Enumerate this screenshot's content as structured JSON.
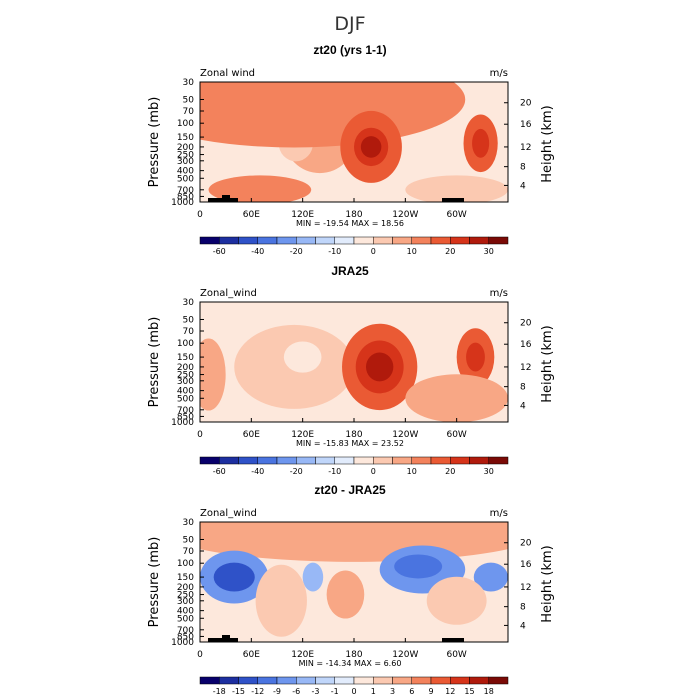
{
  "figure_title": "DJF",
  "chart_data": [
    {
      "type": "heatmap",
      "title": "zt20 (yrs 1-1)",
      "field_label": "Zonal wind",
      "units": "m/s",
      "ylabel": "Pressure (mb)",
      "ylabel_right": "Height (km)",
      "pressure_ticks": [
        "30",
        "50",
        "70",
        "100",
        "150",
        "200",
        "250",
        "300",
        "400",
        "500",
        "700",
        "850",
        "1000"
      ],
      "height_ticks": [
        "4",
        "8",
        "12",
        "16",
        "20"
      ],
      "lon_ticks": [
        "0",
        "60E",
        "120E",
        "180",
        "120W",
        "60W"
      ],
      "min_max": "MIN = -19.54   MAX =  18.56",
      "colorbar_labels": [
        "-60",
        "-40",
        "-20",
        "-10",
        "0",
        "10",
        "20",
        "30"
      ],
      "colorbar_colors": [
        "#08006b",
        "#1d2fa0",
        "#2f52c8",
        "#4a74e0",
        "#6e96ee",
        "#98b8f6",
        "#c0d6fa",
        "#e2ecfc",
        "#fde8dc",
        "#fbc9b1",
        "#f8a785",
        "#f3825c",
        "#ea5a34",
        "#d6341a",
        "#b01a0c",
        "#7a0a06"
      ],
      "blobs": [
        {
          "lon": 140,
          "p": 150,
          "rx": 42,
          "ry": 0.3,
          "val": 0
        },
        {
          "lon": 50,
          "p": 150,
          "rx": 40,
          "ry": 0.25,
          "val": -11
        },
        {
          "lon": 50,
          "p": 150,
          "rx": 22,
          "ry": 0.14,
          "val": -16
        },
        {
          "lon": 112,
          "p": 180,
          "rx": 20,
          "ry": 0.15,
          "val": -7
        },
        {
          "lon": 110,
          "p": 50,
          "rx": 200,
          "ry": 0.4,
          "val": 7
        },
        {
          "lon": 200,
          "p": 200,
          "rx": 36,
          "ry": 0.3,
          "val": 15
        },
        {
          "lon": 200,
          "p": 200,
          "rx": 20,
          "ry": 0.16,
          "val": 21
        },
        {
          "lon": 200,
          "p": 200,
          "rx": 12,
          "ry": 0.09,
          "val": 26
        },
        {
          "lon": 328,
          "p": 180,
          "rx": 20,
          "ry": 0.24,
          "val": 13
        },
        {
          "lon": 328,
          "p": 180,
          "rx": 10,
          "ry": 0.12,
          "val": 21
        },
        {
          "lon": 300,
          "p": 700,
          "rx": 60,
          "ry": 0.12,
          "val": -5
        },
        {
          "lon": 70,
          "p": 700,
          "rx": 60,
          "ry": 0.12,
          "val": 4
        }
      ]
    },
    {
      "type": "heatmap",
      "title": "JRA25",
      "field_label": "Zonal_wind",
      "units": "m/s",
      "ylabel": "Pressure (mb)",
      "ylabel_right": "Height (km)",
      "pressure_ticks": [
        "30",
        "50",
        "70",
        "100",
        "150",
        "200",
        "250",
        "300",
        "400",
        "500",
        "700",
        "850",
        "1000"
      ],
      "height_ticks": [
        "4",
        "8",
        "12",
        "16",
        "20"
      ],
      "lon_ticks": [
        "0",
        "60E",
        "120E",
        "180",
        "120W",
        "60W"
      ],
      "min_max": "MIN = -15.83   MAX =  23.52",
      "colorbar_labels": [
        "-60",
        "-40",
        "-20",
        "-10",
        "0",
        "10",
        "20",
        "30"
      ],
      "colorbar_colors": [
        "#08006b",
        "#1d2fa0",
        "#2f52c8",
        "#4a74e0",
        "#6e96ee",
        "#98b8f6",
        "#c0d6fa",
        "#e2ecfc",
        "#fde8dc",
        "#fbc9b1",
        "#f8a785",
        "#f3825c",
        "#ea5a34",
        "#d6341a",
        "#b01a0c",
        "#7a0a06"
      ],
      "blobs": [
        {
          "lon": 110,
          "p": 200,
          "rx": 70,
          "ry": 0.35,
          "val": -6
        },
        {
          "lon": 120,
          "p": 150,
          "rx": 22,
          "ry": 0.13,
          "val": -14
        },
        {
          "lon": 10,
          "p": 250,
          "rx": 20,
          "ry": 0.3,
          "val": -4
        },
        {
          "lon": 210,
          "p": 200,
          "rx": 44,
          "ry": 0.36,
          "val": 12
        },
        {
          "lon": 210,
          "p": 200,
          "rx": 28,
          "ry": 0.22,
          "val": 18
        },
        {
          "lon": 210,
          "p": 200,
          "rx": 16,
          "ry": 0.12,
          "val": 24
        },
        {
          "lon": 322,
          "p": 150,
          "rx": 22,
          "ry": 0.24,
          "val": 13
        },
        {
          "lon": 322,
          "p": 150,
          "rx": 11,
          "ry": 0.12,
          "val": 19
        },
        {
          "lon": 300,
          "p": 500,
          "rx": 60,
          "ry": 0.2,
          "val": -4
        }
      ]
    },
    {
      "type": "heatmap",
      "title": "zt20 - JRA25",
      "field_label": "Zonal_wind",
      "units": "m/s",
      "ylabel": "Pressure (mb)",
      "ylabel_right": "Height (km)",
      "pressure_ticks": [
        "30",
        "50",
        "70",
        "100",
        "150",
        "200",
        "250",
        "300",
        "400",
        "500",
        "700",
        "850",
        "1000"
      ],
      "height_ticks": [
        "4",
        "8",
        "12",
        "16",
        "20"
      ],
      "lon_ticks": [
        "0",
        "60E",
        "120E",
        "180",
        "120W",
        "60W"
      ],
      "min_max": "MIN = -14.34   MAX =   6.60",
      "colorbar_labels": [
        "-18",
        "-15",
        "-12",
        "-9",
        "-6",
        "-3",
        "-1",
        "0",
        "1",
        "3",
        "6",
        "9",
        "12",
        "15",
        "18"
      ],
      "colorbar_colors": [
        "#08006b",
        "#1d2fa0",
        "#2f52c8",
        "#4a74e0",
        "#6e96ee",
        "#98b8f6",
        "#c0d6fa",
        "#e2ecfc",
        "#fde8dc",
        "#fbc9b1",
        "#f8a785",
        "#f3825c",
        "#ea5a34",
        "#d6341a",
        "#b01a0c",
        "#7a0a06"
      ],
      "blobs": [
        {
          "lon": 180,
          "p": 40,
          "rx": 220,
          "ry": 0.25,
          "val": 7
        },
        {
          "lon": 40,
          "p": 150,
          "rx": 40,
          "ry": 0.22,
          "val": -8
        },
        {
          "lon": 40,
          "p": 150,
          "rx": 24,
          "ry": 0.12,
          "val": -13
        },
        {
          "lon": 132,
          "p": 150,
          "rx": 12,
          "ry": 0.12,
          "val": -6
        },
        {
          "lon": 260,
          "p": 120,
          "rx": 50,
          "ry": 0.2,
          "val": -8
        },
        {
          "lon": 255,
          "p": 110,
          "rx": 28,
          "ry": 0.1,
          "val": -12
        },
        {
          "lon": 340,
          "p": 150,
          "rx": 20,
          "ry": 0.12,
          "val": -9
        },
        {
          "lon": 170,
          "p": 250,
          "rx": 22,
          "ry": 0.2,
          "val": 5
        },
        {
          "lon": 95,
          "p": 300,
          "rx": 30,
          "ry": 0.3,
          "val": 3
        },
        {
          "lon": 300,
          "p": 300,
          "rx": 35,
          "ry": 0.2,
          "val": 4
        }
      ]
    }
  ]
}
